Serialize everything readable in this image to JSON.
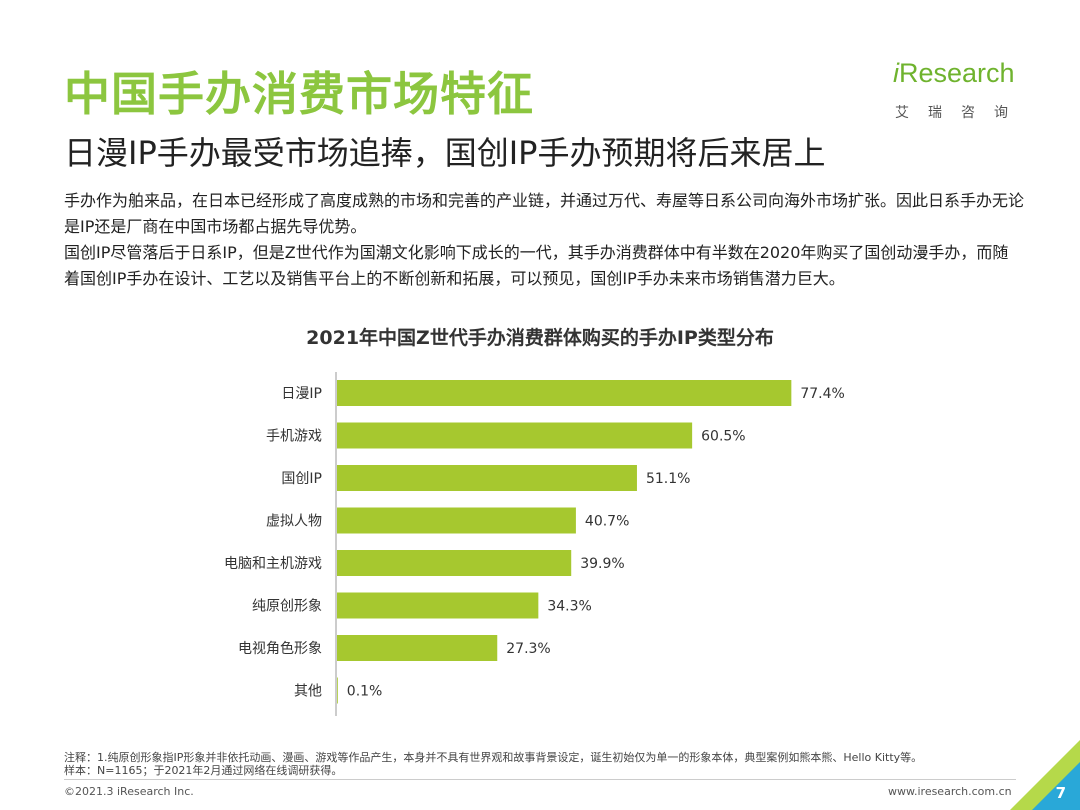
{
  "header": {
    "title": "中国手办消费市场特征",
    "subtitle": "日漫IP手办最受市场追捧，国创IP手办预期将后来居上"
  },
  "logo": {
    "word_i": "i",
    "word_rest": "Research",
    "sub": "艾瑞咨询"
  },
  "description": {
    "p1": "手办作为舶来品，在日本已经形成了高度成熟的市场和完善的产业链，并通过万代、寿屋等日系公司向海外市场扩张。因此日系手办无论是IP还是厂商在中国市场都占据先导优势。",
    "p2": "国创IP尽管落后于日系IP，但是Z世代作为国潮文化影响下成长的一代，其手办消费群体中有半数在2020年购买了国创动漫手办，而随着国创IP手办在设计、工艺以及销售平台上的不断创新和拓展，可以预见，国创IP手办未来市场销售潜力巨大。"
  },
  "chart_data": {
    "type": "bar",
    "orientation": "horizontal",
    "title": "2021年中国Z世代手办消费群体购买的手办IP类型分布",
    "categories": [
      "日漫IP",
      "手机游戏",
      "国创IP",
      "虚拟人物",
      "电脑和主机游戏",
      "纯原创形象",
      "电视角色形象",
      "其他"
    ],
    "values": [
      77.4,
      60.5,
      51.1,
      40.7,
      39.9,
      34.3,
      27.3,
      0.1
    ],
    "labels": [
      "77.4%",
      "60.5%",
      "51.1%",
      "40.7%",
      "39.9%",
      "34.3%",
      "27.3%",
      "0.1%"
    ],
    "xlim": [
      0,
      100
    ],
    "bar_color": "#a6c82f",
    "grid": false
  },
  "notes": {
    "line1": "注释：1.纯原创形象指IP形象并非依托动画、漫画、游戏等作品产生，本身并不具有世界观和故事背景设定，诞生初始仅为单一的形象本体，典型案例如熊本熊、Hello Kitty等。",
    "line2": "样本：N=1165；于2021年2月通过网络在线调研获得。"
  },
  "footer": {
    "copyright": "©2021.3 iResearch Inc.",
    "site": "www.iresearch.com.cn",
    "page": "7"
  }
}
